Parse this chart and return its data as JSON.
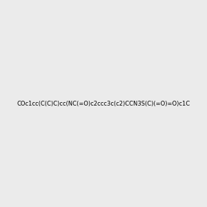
{
  "smiles": "COc1cc(C(C)C)cc(NC(=O)c2ccc3c(c2)CCN3S(C)(=O)=O)c1C",
  "image_size": 300,
  "background_color": "#ebebeb",
  "title": "",
  "atom_colors": {
    "N": "blue",
    "O": "red",
    "S": "yellow"
  }
}
